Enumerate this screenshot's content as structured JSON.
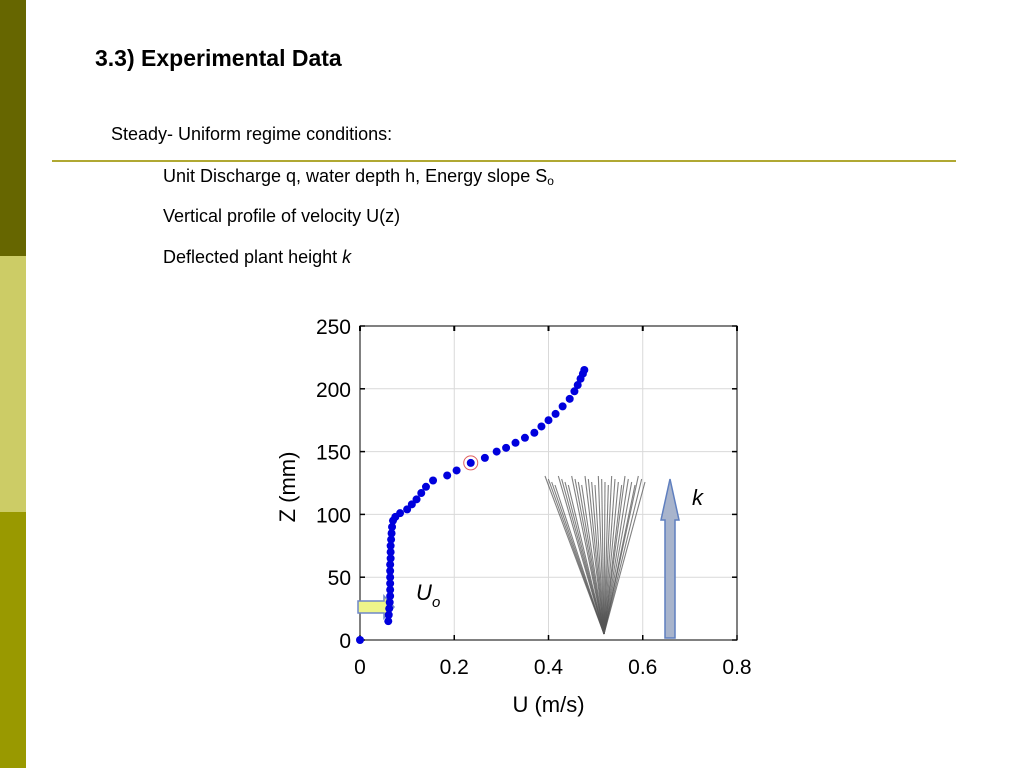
{
  "slide": {
    "title": "3.3) Experimental Data",
    "intro": "Steady- Uniform regime conditions:",
    "item1_main": "Unit Discharge q, water depth h, Energy slope S",
    "item1_sub": "o",
    "item2": "Vertical profile of velocity U(z)",
    "item3_main": "Deflected plant height ",
    "item3_var": "k"
  },
  "colors": {
    "sidebar_dark": "#666600",
    "sidebar_light": "#cccc66",
    "sidebar_mid": "#999900",
    "divider": "#b0a832",
    "points": "#0000dd",
    "highlight_circle": "#e06060",
    "uo_arrow_fill": "#eef58a",
    "k_arrow_fill": "#a8b4cc",
    "plant_stems": "#555555"
  },
  "chart_data": {
    "type": "scatter",
    "xlabel": "U (m/s)",
    "ylabel": "Z (mm)",
    "xlim": [
      0,
      0.8
    ],
    "ylim": [
      0,
      250
    ],
    "xticks": [
      0,
      0.2,
      0.4,
      0.6,
      0.8
    ],
    "yticks": [
      0,
      50,
      100,
      150,
      200,
      250
    ],
    "xtick_labels": [
      "0",
      "0.2",
      "0.4",
      "0.6",
      "0.8"
    ],
    "ytick_labels": [
      "0",
      "50",
      "100",
      "150",
      "200",
      "250"
    ],
    "grid": true,
    "series": [
      {
        "points": [
          [
            0.0,
            0.0
          ],
          [
            0.06,
            15
          ],
          [
            0.061,
            20
          ],
          [
            0.062,
            25
          ],
          [
            0.063,
            30
          ],
          [
            0.064,
            35
          ],
          [
            0.064,
            40
          ],
          [
            0.064,
            45
          ],
          [
            0.064,
            50
          ],
          [
            0.064,
            55
          ],
          [
            0.064,
            60
          ],
          [
            0.065,
            65
          ],
          [
            0.065,
            70
          ],
          [
            0.065,
            75
          ],
          [
            0.066,
            80
          ],
          [
            0.067,
            85
          ],
          [
            0.068,
            90
          ],
          [
            0.07,
            95
          ],
          [
            0.075,
            98
          ],
          [
            0.085,
            101
          ],
          [
            0.1,
            104
          ],
          [
            0.11,
            108
          ],
          [
            0.12,
            112
          ],
          [
            0.13,
            117
          ],
          [
            0.14,
            122
          ],
          [
            0.155,
            127
          ],
          [
            0.185,
            131
          ],
          [
            0.205,
            135
          ],
          [
            0.235,
            141
          ],
          [
            0.265,
            145
          ],
          [
            0.29,
            150
          ],
          [
            0.31,
            153
          ],
          [
            0.33,
            157
          ],
          [
            0.35,
            161
          ],
          [
            0.37,
            165
          ],
          [
            0.385,
            170
          ],
          [
            0.4,
            175
          ],
          [
            0.415,
            180
          ],
          [
            0.43,
            186
          ],
          [
            0.445,
            192
          ],
          [
            0.455,
            198
          ],
          [
            0.462,
            203
          ],
          [
            0.468,
            208
          ],
          [
            0.473,
            212
          ],
          [
            0.476,
            215
          ]
        ]
      }
    ],
    "highlighted_point": [
      0.235,
      141
    ],
    "annotations": {
      "uo_label": "U",
      "uo_sub": "o",
      "k_label": "k"
    }
  }
}
